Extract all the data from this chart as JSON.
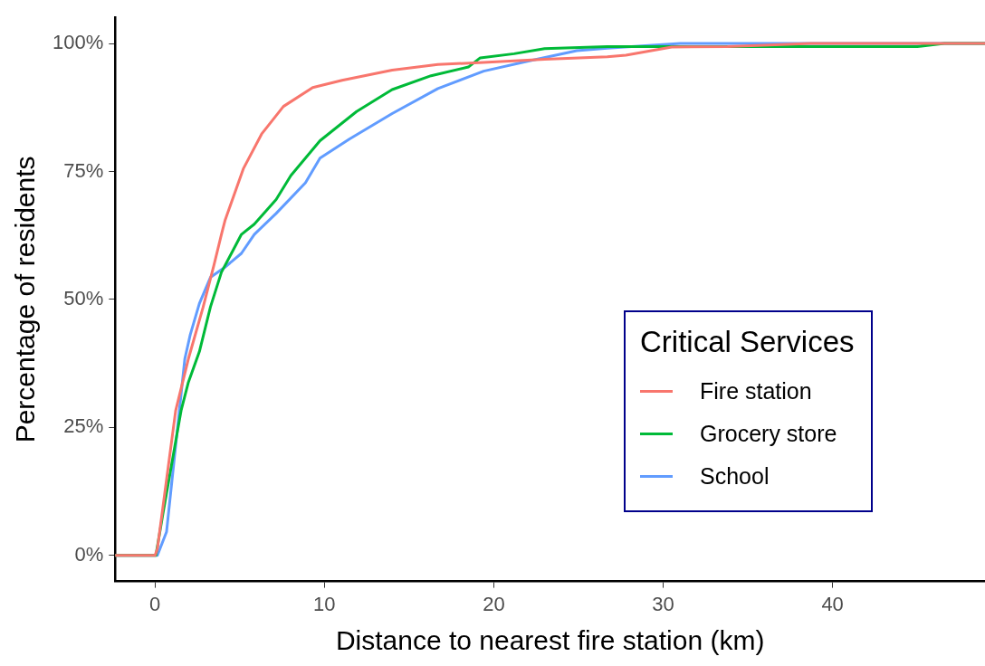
{
  "chart_data": {
    "type": "line",
    "xlabel": "Distance to nearest fire station (km)",
    "ylabel": "Percentage of residents",
    "legend_title": "Critical Services",
    "legend": "bottom right",
    "grid": false,
    "marker": "none",
    "line_style": "solid",
    "xlim": [
      -2.35,
      49
    ],
    "xticks": [
      0,
      10,
      20,
      30,
      40
    ],
    "ylim": [
      -5.1,
      105.1
    ],
    "yticks": [
      {
        "value": 0,
        "label": "0%"
      },
      {
        "value": 25,
        "label": "25%"
      },
      {
        "value": 50,
        "label": "50%"
      },
      {
        "value": 75,
        "label": "75%"
      },
      {
        "value": 100,
        "label": "100%"
      }
    ],
    "series": [
      {
        "name": "Fire station",
        "color": "#f8766d",
        "x": [
          -2.35,
          0,
          0.14,
          1.22,
          1.97,
          2.84,
          3.48,
          3.92,
          4.13,
          5.21,
          6.29,
          7.58,
          9.31,
          11.04,
          14.0,
          16.7,
          19.4,
          23.0,
          26.7,
          27.8,
          30.5,
          33.8,
          38.7,
          49
        ],
        "values": [
          0,
          0,
          1.3,
          28.3,
          38.4,
          48.5,
          56.7,
          62.7,
          65.4,
          75.5,
          82.3,
          87.7,
          91.4,
          92.8,
          94.8,
          95.9,
          96.3,
          96.9,
          97.4,
          97.7,
          99.3,
          99.4,
          100,
          100
        ]
      },
      {
        "name": "Grocery store",
        "color": "#00ba38",
        "x": [
          -2.35,
          0.05,
          0.46,
          1.54,
          1.96,
          2.62,
          3.27,
          3.92,
          4.56,
          5.1,
          5.86,
          7.15,
          8.02,
          9.74,
          11.9,
          14.0,
          16.3,
          18.5,
          19.2,
          21.2,
          23.0,
          26.7,
          45.0,
          46.6,
          49
        ],
        "values": [
          0,
          0,
          8,
          28.3,
          33.7,
          39.8,
          48.5,
          55.3,
          59.3,
          62.7,
          64.7,
          69.5,
          74.2,
          81,
          86.7,
          91,
          93.7,
          95.4,
          97.2,
          98.0,
          99.0,
          99.4,
          99.4,
          100,
          100
        ]
      },
      {
        "name": "School",
        "color": "#619cff",
        "x": [
          -2.35,
          0.14,
          0.68,
          1.22,
          1.76,
          2.08,
          2.62,
          3.27,
          4.13,
          5.1,
          5.86,
          7.15,
          8.88,
          9.74,
          11.47,
          14.0,
          16.7,
          19.4,
          22.1,
          24.9,
          26.7,
          31.0,
          49
        ],
        "values": [
          0,
          0,
          4.6,
          21.5,
          38.4,
          43.1,
          49.2,
          54.3,
          56.3,
          59,
          62.7,
          66.8,
          72.8,
          77.6,
          81.3,
          86.3,
          91.2,
          94.6,
          96.6,
          98.6,
          99.1,
          100,
          100
        ]
      }
    ]
  }
}
